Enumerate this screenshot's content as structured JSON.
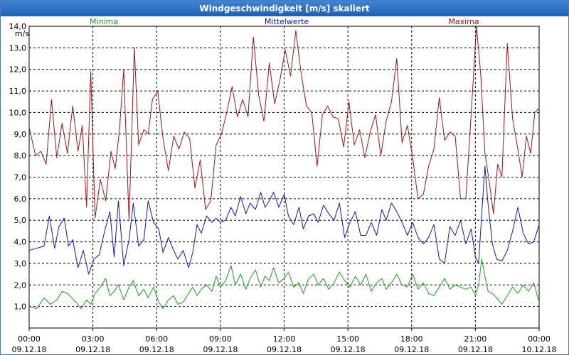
{
  "chart_data": {
    "type": "line",
    "title": "Windgeschwindigkeit [m/s] skaliert",
    "ylabel": "m/s",
    "ylim": [
      0,
      14.0
    ],
    "yticks": [
      "1,0",
      "2,0",
      "3,0",
      "4,0",
      "5,0",
      "6,0",
      "7,0",
      "8,0",
      "9,0",
      "10,0",
      "11,0",
      "12,0",
      "13,0",
      "14,0"
    ],
    "xlim": [
      0,
      24
    ],
    "xticks": [
      {
        "time": "00:00",
        "date": "09.12.18"
      },
      {
        "time": "03:00",
        "date": "09.12.18"
      },
      {
        "time": "06:00",
        "date": "09.12.18"
      },
      {
        "time": "09:00",
        "date": "09.12.18"
      },
      {
        "time": "12:00",
        "date": "09.12.18"
      },
      {
        "time": "15:00",
        "date": "09.12.18"
      },
      {
        "time": "18:00",
        "date": "09.12.18"
      },
      {
        "time": "21:00",
        "date": "09.12.18"
      },
      {
        "time": "00:00",
        "date": "10.12.18"
      }
    ],
    "grid": true,
    "series": [
      {
        "name": "Minima",
        "color": "#1aa01a",
        "x": [
          0,
          0.35,
          0.7,
          1.0,
          1.3,
          1.55,
          1.8,
          2.0,
          2.2,
          2.45,
          2.7,
          2.9,
          3.1,
          3.35,
          3.6,
          3.8,
          4.0,
          4.2,
          4.45,
          4.7,
          4.9,
          5.15,
          5.4,
          5.6,
          5.85,
          6.1,
          6.3,
          6.55,
          6.8,
          7.0,
          7.25,
          7.5,
          7.7,
          7.9,
          8.1,
          8.35,
          8.6,
          8.8,
          9.0,
          9.25,
          9.5,
          9.7,
          9.95,
          10.2,
          10.4,
          10.65,
          10.9,
          11.1,
          11.3,
          11.5,
          11.75,
          12.0,
          12.2,
          12.45,
          12.7,
          12.9,
          13.15,
          13.4,
          13.6,
          13.85,
          14.1,
          14.35,
          14.6,
          14.85,
          15.1,
          15.35,
          15.6,
          15.85,
          16.1,
          16.35,
          16.6,
          16.8,
          17.05,
          17.3,
          17.55,
          17.8,
          18.05,
          18.3,
          18.55,
          18.8,
          19.05,
          19.3,
          19.55,
          19.8,
          20.05,
          20.3,
          20.55,
          20.8,
          21.0,
          21.15,
          21.3,
          21.45,
          21.6,
          21.8,
          22.0,
          22.25,
          22.5,
          22.75,
          23.0,
          23.25,
          23.5,
          23.75,
          24.0
        ],
        "values": [
          1.0,
          0.9,
          1.4,
          1.1,
          1.3,
          1.7,
          1.6,
          1.4,
          1.2,
          0.9,
          1.3,
          1.1,
          1.6,
          1.9,
          2.3,
          1.5,
          1.7,
          2.0,
          1.3,
          1.9,
          2.2,
          1.5,
          1.8,
          1.4,
          1.9,
          1.2,
          0.9,
          1.3,
          1.5,
          1.1,
          1.2,
          1.6,
          1.9,
          1.5,
          1.8,
          2.0,
          1.7,
          2.4,
          1.9,
          2.2,
          2.9,
          2.0,
          2.5,
          1.8,
          2.3,
          2.7,
          1.9,
          2.4,
          2.2,
          2.8,
          2.1,
          2.3,
          2.6,
          1.9,
          2.1,
          1.6,
          2.3,
          2.5,
          2.0,
          2.3,
          1.8,
          2.1,
          2.6,
          2.2,
          1.9,
          2.4,
          2.0,
          2.5,
          1.7,
          2.1,
          2.3,
          1.8,
          2.1,
          2.5,
          2.0,
          1.9,
          2.5,
          1.8,
          2.1,
          1.6,
          1.5,
          1.9,
          2.3,
          1.8,
          2.0,
          1.9,
          1.8,
          1.9,
          1.5,
          2.0,
          3.2,
          2.4,
          1.7,
          1.6,
          1.4,
          1.1,
          1.5,
          1.9,
          1.6,
          2.0,
          1.7,
          2.1,
          1.2
        ]
      },
      {
        "name": "Mittelwerte",
        "color": "#1414b4",
        "x": [
          0,
          0.35,
          0.7,
          0.95,
          1.2,
          1.4,
          1.65,
          1.85,
          2.05,
          2.3,
          2.55,
          2.8,
          3.05,
          3.3,
          3.55,
          3.8,
          4.0,
          4.2,
          4.45,
          4.7,
          4.9,
          5.15,
          5.4,
          5.6,
          5.85,
          6.1,
          6.3,
          6.55,
          6.8,
          7.0,
          7.25,
          7.5,
          7.7,
          7.9,
          8.1,
          8.35,
          8.6,
          8.8,
          9.0,
          9.25,
          9.5,
          9.7,
          9.95,
          10.2,
          10.4,
          10.65,
          10.9,
          11.1,
          11.3,
          11.5,
          11.75,
          12.0,
          12.2,
          12.45,
          12.7,
          12.9,
          13.15,
          13.4,
          13.6,
          13.85,
          14.1,
          14.35,
          14.6,
          14.85,
          15.1,
          15.35,
          15.6,
          15.85,
          16.1,
          16.35,
          16.6,
          16.8,
          17.05,
          17.3,
          17.55,
          17.8,
          18.05,
          18.3,
          18.55,
          18.8,
          19.05,
          19.3,
          19.55,
          19.8,
          20.05,
          20.3,
          20.55,
          20.8,
          21.0,
          21.15,
          21.3,
          21.45,
          21.6,
          21.8,
          22.0,
          22.25,
          22.5,
          22.75,
          23.0,
          23.25,
          23.5,
          23.75,
          24.0
        ],
        "values": [
          3.6,
          3.7,
          3.8,
          5.2,
          3.7,
          4.7,
          5.1,
          3.8,
          4.1,
          2.8,
          3.6,
          2.5,
          3.2,
          3.4,
          4.5,
          5.4,
          3.3,
          5.9,
          2.9,
          4.1,
          5.8,
          3.8,
          4.1,
          5.9,
          4.9,
          4.6,
          3.5,
          4.2,
          3.6,
          3.2,
          3.6,
          2.8,
          3.5,
          4.8,
          4.4,
          5.2,
          4.9,
          5.1,
          4.9,
          5.0,
          5.6,
          5.2,
          6.1,
          5.3,
          5.8,
          5.5,
          6.3,
          5.6,
          5.9,
          6.3,
          5.6,
          6.2,
          5.2,
          4.8,
          5.6,
          4.6,
          5.2,
          5.3,
          4.9,
          5.7,
          5.3,
          5.0,
          5.8,
          4.2,
          4.9,
          5.4,
          4.3,
          4.3,
          4.9,
          4.3,
          5.5,
          5.0,
          5.8,
          5.4,
          4.9,
          4.3,
          4.9,
          4.2,
          3.9,
          4.2,
          4.8,
          3.2,
          3.0,
          4.7,
          4.3,
          5.0,
          3.9,
          4.6,
          3.3,
          3.0,
          5.3,
          7.5,
          5.7,
          3.9,
          3.2,
          3.1,
          3.6,
          4.5,
          5.6,
          4.4,
          3.9,
          4.0,
          4.8
        ]
      },
      {
        "name": "Maxima",
        "color": "#a01414",
        "x": [
          0,
          0.3,
          0.55,
          0.8,
          1.05,
          1.3,
          1.55,
          1.8,
          2.05,
          2.3,
          2.5,
          2.7,
          2.9,
          3.1,
          3.35,
          3.6,
          3.85,
          4.05,
          4.25,
          4.45,
          4.7,
          4.95,
          5.15,
          5.4,
          5.6,
          5.8,
          6.05,
          6.3,
          6.55,
          6.8,
          7.05,
          7.3,
          7.55,
          7.8,
          8.05,
          8.3,
          8.55,
          8.8,
          9.05,
          9.3,
          9.55,
          9.8,
          10.05,
          10.3,
          10.55,
          10.8,
          11.05,
          11.3,
          11.55,
          11.8,
          12.05,
          12.3,
          12.55,
          12.8,
          13.05,
          13.3,
          13.55,
          13.8,
          14.05,
          14.3,
          14.55,
          14.8,
          15.05,
          15.3,
          15.55,
          15.8,
          16.05,
          16.3,
          16.55,
          16.8,
          17.05,
          17.3,
          17.55,
          17.8,
          18.05,
          18.3,
          18.55,
          18.8,
          19.05,
          19.3,
          19.55,
          19.8,
          20.05,
          20.3,
          20.55,
          20.8,
          21.05,
          21.25,
          21.45,
          21.65,
          21.85,
          22.05,
          22.25,
          22.5,
          22.75,
          23.0,
          23.2,
          23.4,
          23.6,
          23.8,
          24.0
        ],
        "values": [
          9.3,
          8.0,
          8.2,
          7.6,
          10.6,
          7.9,
          9.5,
          8.1,
          10.3,
          8.2,
          9.4,
          5.6,
          11.9,
          5.1,
          6.9,
          5.9,
          8.2,
          7.4,
          9.2,
          12.0,
          5.0,
          13.0,
          8.5,
          9.2,
          9.0,
          10.6,
          11.0,
          8.8,
          7.3,
          8.9,
          8.3,
          9.1,
          8.8,
          6.5,
          7.8,
          5.5,
          5.9,
          8.5,
          9.0,
          10.0,
          11.2,
          9.8,
          10.6,
          9.8,
          13.5,
          10.8,
          9.6,
          12.3,
          10.4,
          11.5,
          12.9,
          11.7,
          13.8,
          11.8,
          10.3,
          10.0,
          7.5,
          9.9,
          10.3,
          9.8,
          9.7,
          8.4,
          10.5,
          8.5,
          9.2,
          7.9,
          9.1,
          9.9,
          8.0,
          9.6,
          10.5,
          12.5,
          8.6,
          9.4,
          7.9,
          6.0,
          6.2,
          7.5,
          8.3,
          10.7,
          8.7,
          9.1,
          8.9,
          6.0,
          6.0,
          9.9,
          14.0,
          11.8,
          8.1,
          6.8,
          5.3,
          7.6,
          7.0,
          13.2,
          9.7,
          8.3,
          7.0,
          8.9,
          8.1,
          10.0,
          10.2
        ]
      }
    ]
  }
}
